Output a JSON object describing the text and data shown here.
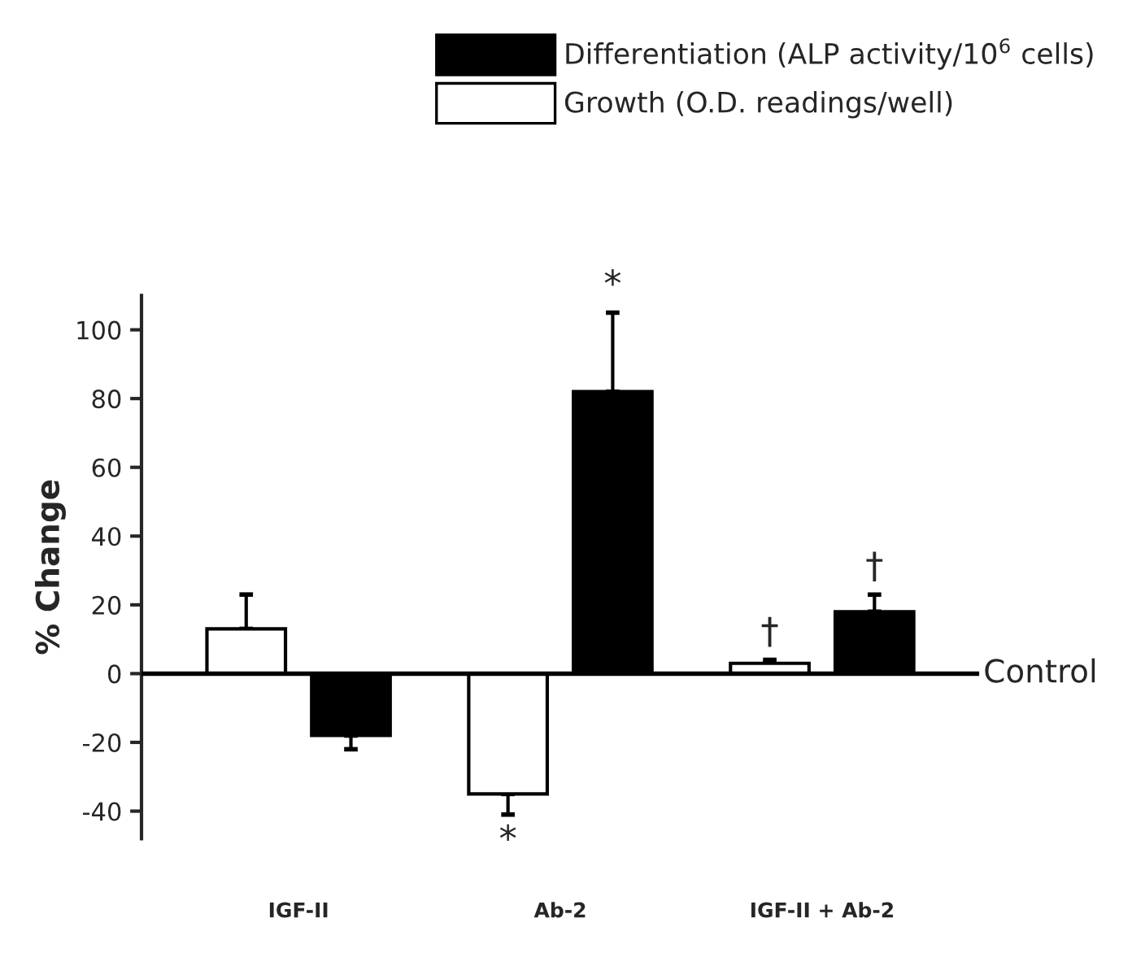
{
  "chart_data": {
    "type": "bar",
    "ylabel": "% Change",
    "categories": [
      "IGF-II",
      "Ab-2",
      "IGF-II + Ab-2"
    ],
    "series": [
      {
        "name": "Growth (O.D. readings/well)",
        "color": "#ffffff",
        "values": [
          13,
          -35,
          3
        ],
        "errors": [
          [
            13,
            23
          ],
          [
            -41,
            -35
          ],
          [
            3,
            4
          ]
        ],
        "value_labels": [
          null,
          "*",
          "†"
        ]
      },
      {
        "name": "Differentiation (ALP activity/10$^{6}$ cells)",
        "color": "#000000",
        "values": [
          -18,
          82,
          18
        ],
        "errors": [
          [
            -22,
            -18
          ],
          [
            82,
            105
          ],
          [
            18,
            23
          ]
        ],
        "value_labels": [
          null,
          "*",
          "†"
        ]
      }
    ],
    "ylim": [
      -48,
      110
    ],
    "yticks": [
      -40,
      -20,
      0,
      20,
      40,
      60,
      80,
      100
    ],
    "ref_lines": [
      {
        "axis": "y",
        "value": 0,
        "label": "Control",
        "color": "#000000"
      }
    ],
    "legend": "top right",
    "grid": false
  }
}
